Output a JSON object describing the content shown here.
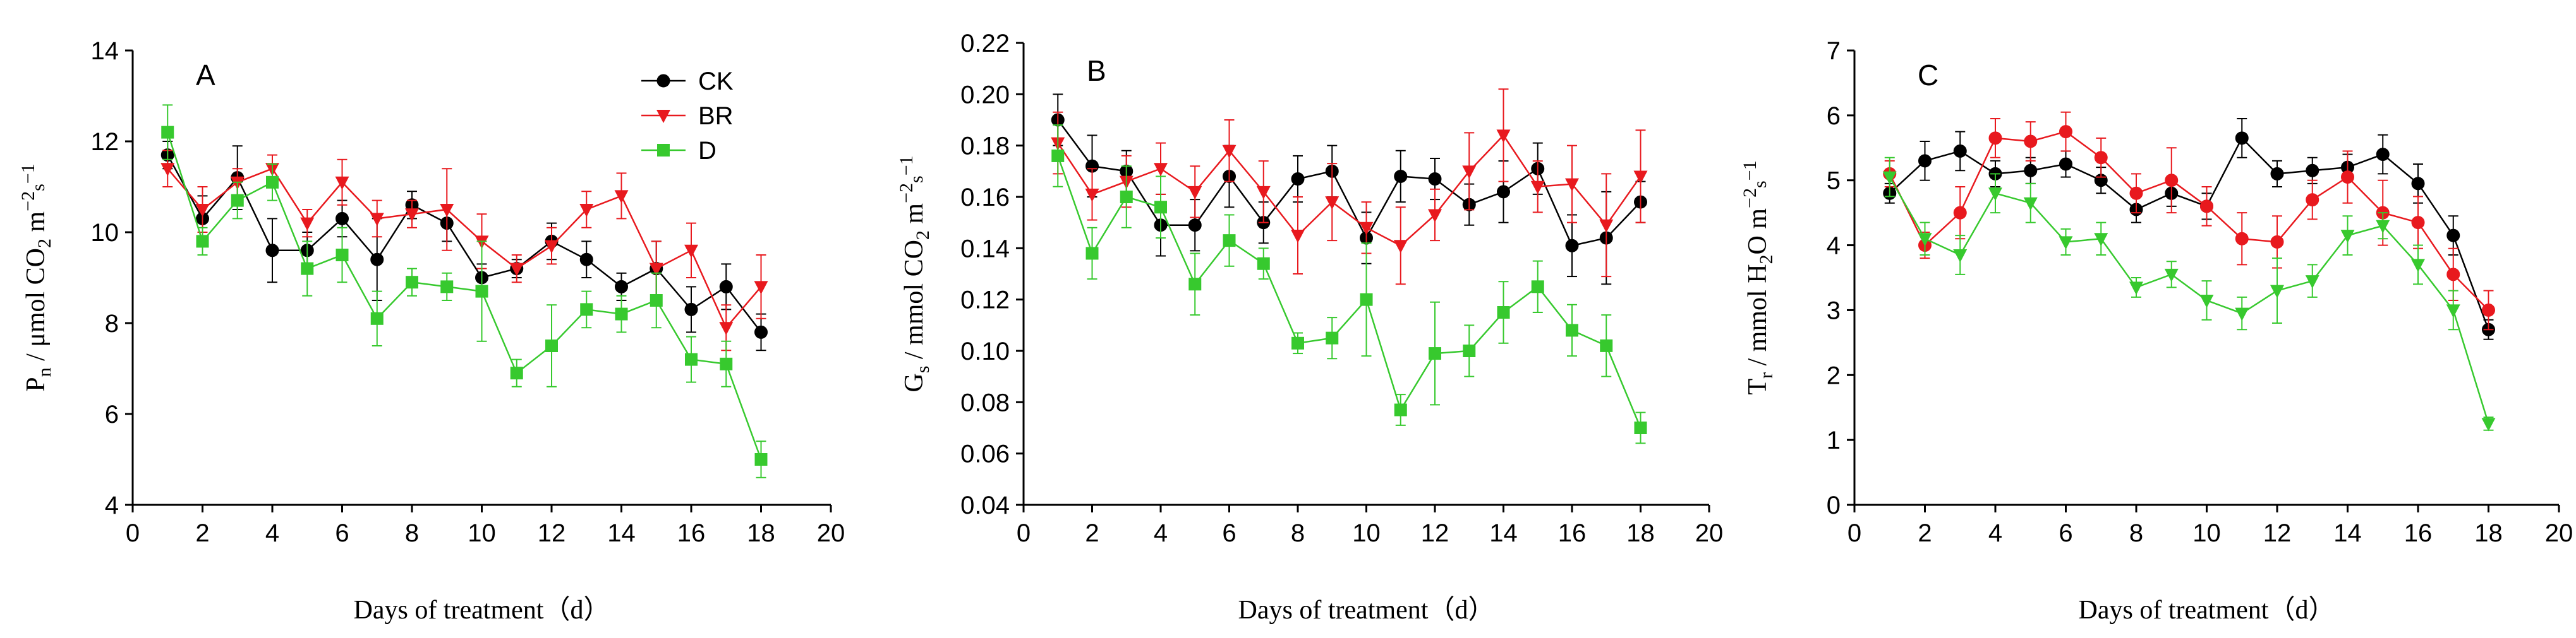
{
  "chart_data": [
    {
      "type": "line",
      "panel_label": "A",
      "xlabel": "Days of treatment（d）",
      "ylabel": {
        "main": "P",
        "sub": "n",
        "unit": " / μmol CO",
        "unit_sub": "2",
        "unit_rest": " m",
        "sup1": "−2",
        "mid": "s",
        "sup2": "−1"
      },
      "xlim": [
        0,
        20
      ],
      "xticks": [
        "0",
        "2",
        "4",
        "6",
        "8",
        "10",
        "12",
        "14",
        "16",
        "18",
        "20"
      ],
      "ylim": [
        4,
        14
      ],
      "yticks": [
        "4",
        "6",
        "8",
        "10",
        "12",
        "14"
      ],
      "x": [
        1,
        2,
        3,
        4,
        5,
        6,
        7,
        8,
        9,
        10,
        11,
        12,
        13,
        14,
        15,
        16,
        17,
        18
      ],
      "legend": [
        "CK",
        "BR",
        "D"
      ],
      "series": [
        {
          "name": "CK",
          "color": "#000000",
          "marker": "circle",
          "values": [
            11.7,
            10.3,
            11.2,
            9.6,
            9.6,
            10.3,
            9.4,
            10.6,
            10.2,
            9.0,
            9.2,
            9.8,
            9.4,
            8.8,
            9.2,
            8.3,
            8.8,
            7.8
          ],
          "errors": [
            0.3,
            0.5,
            0.7,
            0.7,
            0.4,
            0.4,
            0.9,
            0.3,
            0.4,
            0.3,
            0.2,
            0.4,
            0.4,
            0.3,
            0.6,
            0.5,
            0.5,
            0.4
          ]
        },
        {
          "name": "BR",
          "color": "#e8191e",
          "marker": "triangle-down",
          "values": [
            11.4,
            10.5,
            11.1,
            11.4,
            10.2,
            11.1,
            10.3,
            10.4,
            10.5,
            9.8,
            9.2,
            9.7,
            10.5,
            10.8,
            9.2,
            9.6,
            7.9,
            8.8
          ],
          "errors": [
            0.4,
            0.5,
            0.3,
            0.3,
            0.3,
            0.5,
            0.4,
            0.3,
            0.9,
            0.6,
            0.3,
            0.4,
            0.4,
            0.5,
            0.6,
            0.6,
            0.5,
            0.7
          ]
        },
        {
          "name": "D",
          "color": "#37c92e",
          "marker": "square",
          "values": [
            12.2,
            9.8,
            10.7,
            11.1,
            9.2,
            9.5,
            8.1,
            8.9,
            8.8,
            8.7,
            6.9,
            7.5,
            8.3,
            8.2,
            8.5,
            7.2,
            7.1,
            5.0
          ],
          "errors": [
            0.6,
            0.3,
            0.4,
            0.4,
            0.6,
            0.6,
            0.6,
            0.3,
            0.3,
            1.1,
            0.3,
            0.9,
            0.4,
            0.4,
            0.6,
            0.5,
            0.5,
            0.4
          ]
        }
      ]
    },
    {
      "type": "line",
      "panel_label": "B",
      "xlabel": "Days of treatment（d）",
      "ylabel": {
        "main": "G",
        "sub": "s",
        "unit": " / mmol CO",
        "unit_sub": "2",
        "unit_rest": " m",
        "sup1": "−2",
        "mid": "s",
        "sup2": "−1"
      },
      "xlim": [
        0,
        20
      ],
      "xticks": [
        "0",
        "2",
        "4",
        "6",
        "8",
        "10",
        "12",
        "14",
        "16",
        "18",
        "20"
      ],
      "ylim": [
        0.04,
        0.22
      ],
      "yticks": [
        "0.04",
        "0.06",
        "0.08",
        "0.10",
        "0.12",
        "0.14",
        "0.16",
        "0.18",
        "0.20",
        "0.22"
      ],
      "x": [
        1,
        2,
        3,
        4,
        5,
        6,
        7,
        8,
        9,
        10,
        11,
        12,
        13,
        14,
        15,
        16,
        17,
        18
      ],
      "series": [
        {
          "name": "CK",
          "color": "#000000",
          "marker": "circle",
          "values": [
            0.19,
            0.172,
            0.17,
            0.149,
            0.149,
            0.168,
            0.15,
            0.167,
            0.17,
            0.144,
            0.168,
            0.167,
            0.157,
            0.162,
            0.171,
            0.141,
            0.144,
            0.158
          ],
          "errors": [
            0.01,
            0.012,
            0.008,
            0.012,
            0.01,
            0.012,
            0.008,
            0.009,
            0.01,
            0.01,
            0.01,
            0.008,
            0.008,
            0.012,
            0.01,
            0.012,
            0.018,
            0.008
          ]
        },
        {
          "name": "BR",
          "color": "#e8191e",
          "marker": "triangle-down",
          "values": [
            0.181,
            0.161,
            0.166,
            0.171,
            0.162,
            0.178,
            0.162,
            0.145,
            0.158,
            0.148,
            0.141,
            0.153,
            0.17,
            0.184,
            0.164,
            0.165,
            0.149,
            0.168
          ],
          "errors": [
            0.012,
            0.01,
            0.01,
            0.01,
            0.01,
            0.012,
            0.012,
            0.015,
            0.015,
            0.01,
            0.015,
            0.01,
            0.015,
            0.018,
            0.01,
            0.015,
            0.02,
            0.018
          ]
        },
        {
          "name": "D",
          "color": "#37c92e",
          "marker": "square",
          "values": [
            0.176,
            0.138,
            0.16,
            0.156,
            0.126,
            0.143,
            0.134,
            0.103,
            0.105,
            0.12,
            0.077,
            0.099,
            0.1,
            0.115,
            0.125,
            0.108,
            0.102,
            0.07
          ],
          "errors": [
            0.012,
            0.01,
            0.012,
            0.012,
            0.012,
            0.01,
            0.006,
            0.004,
            0.008,
            0.022,
            0.006,
            0.02,
            0.01,
            0.012,
            0.01,
            0.01,
            0.012,
            0.006
          ]
        }
      ]
    },
    {
      "type": "line",
      "panel_label": "C",
      "xlabel": "Days of treatment（d）",
      "ylabel": {
        "main": "T",
        "sub": "r",
        "unit": " / mmol H",
        "unit_sub": "2",
        "unit_rest": "O m",
        "sup1": "−2",
        "mid": "s",
        "sup2": "−1"
      },
      "xlim": [
        0,
        20
      ],
      "xticks": [
        "0",
        "2",
        "4",
        "6",
        "8",
        "10",
        "12",
        "14",
        "16",
        "18",
        "20"
      ],
      "ylim": [
        0,
        7
      ],
      "yticks": [
        "0",
        "1",
        "2",
        "3",
        "4",
        "5",
        "6",
        "7"
      ],
      "x": [
        1,
        2,
        3,
        4,
        5,
        6,
        7,
        8,
        9,
        10,
        11,
        12,
        13,
        14,
        15,
        16,
        17,
        18
      ],
      "series": [
        {
          "name": "CK",
          "color": "#000000",
          "marker": "circle",
          "values": [
            4.8,
            5.3,
            5.45,
            5.1,
            5.15,
            5.25,
            5.0,
            4.55,
            4.8,
            4.6,
            5.65,
            5.1,
            5.15,
            5.2,
            5.4,
            4.95,
            4.15,
            2.7
          ],
          "errors": [
            0.15,
            0.3,
            0.3,
            0.2,
            0.2,
            0.2,
            0.2,
            0.2,
            0.2,
            0.2,
            0.3,
            0.2,
            0.2,
            0.2,
            0.3,
            0.3,
            0.3,
            0.15
          ]
        },
        {
          "name": "BR",
          "color": "#e8191e",
          "marker": "circle",
          "values": [
            5.1,
            4.0,
            4.5,
            5.65,
            5.6,
            5.75,
            5.35,
            4.8,
            5.0,
            4.6,
            4.1,
            4.05,
            4.7,
            5.05,
            4.5,
            4.35,
            3.55,
            3.0
          ],
          "errors": [
            0.2,
            0.2,
            0.4,
            0.3,
            0.3,
            0.3,
            0.3,
            0.3,
            0.5,
            0.3,
            0.4,
            0.4,
            0.3,
            0.4,
            0.5,
            0.4,
            0.4,
            0.3
          ]
        },
        {
          "name": "D",
          "color": "#37c92e",
          "marker": "triangle-down",
          "values": [
            5.05,
            4.1,
            3.85,
            4.8,
            4.65,
            4.05,
            4.1,
            3.35,
            3.55,
            3.15,
            2.95,
            3.3,
            3.45,
            4.15,
            4.3,
            3.7,
            3.0,
            1.25
          ],
          "errors": [
            0.3,
            0.25,
            0.3,
            0.3,
            0.3,
            0.2,
            0.25,
            0.15,
            0.2,
            0.3,
            0.25,
            0.5,
            0.25,
            0.3,
            0.2,
            0.3,
            0.3,
            0.1
          ]
        }
      ]
    }
  ]
}
